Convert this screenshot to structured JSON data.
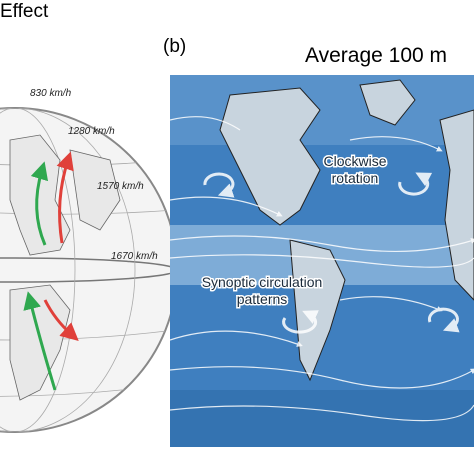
{
  "panel_a": {
    "title": "Effect",
    "speed_labels": [
      "830 km/h",
      "1280 km/h",
      "1570 km/h",
      "1670 km/h"
    ]
  },
  "panel_b": {
    "label": "(b)",
    "title": "Average 100 m",
    "annotations": [
      [
        "Clockwise",
        "rotation"
      ],
      [
        "Synoptic circulation",
        "patterns"
      ]
    ]
  }
}
